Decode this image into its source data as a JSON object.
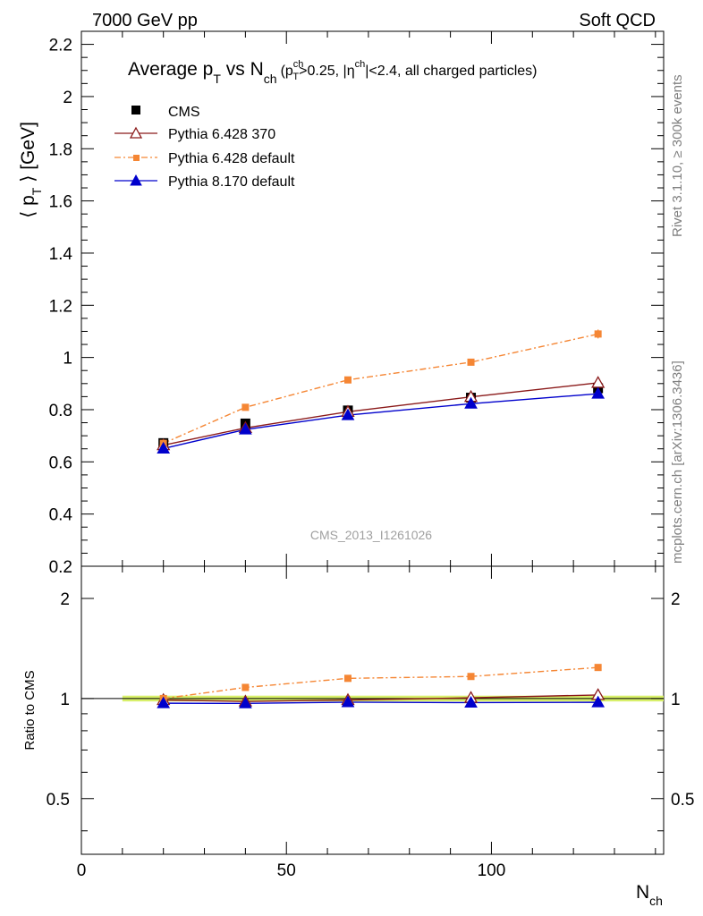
{
  "header": {
    "left": "7000 GeV pp",
    "right": "Soft QCD"
  },
  "side_labels": {
    "rivet": "Rivet 3.1.10, ≥ 300k events",
    "mcplots": "mcplots.cern.ch [arXiv:1306.3436]"
  },
  "chart_data": [
    {
      "type": "scatter",
      "panel": "main",
      "title": {
        "main": "Average p",
        "main_sub": "T",
        "vs": " vs N",
        "vs_sub": "ch",
        "cut_open": "(p",
        "cut_sup": "ch",
        "cut_sub": "T",
        "cut_mid": ">0.25, |η",
        "cut_sup2": "ch",
        "cut_end": "|<2.4, all charged particles)"
      },
      "ylabel": {
        "open": "⟨ p",
        "sub": "T",
        "close": " ⟩ [GeV]"
      },
      "watermark": "CMS_2013_I1261026",
      "xlim": [
        0,
        142
      ],
      "ylim": [
        0.2,
        2.25
      ],
      "x_ticks": [
        0,
        50,
        100
      ],
      "y_ticks": [
        "0.2",
        "0.4",
        "0.6",
        "0.8",
        "1",
        "1.2",
        "1.4",
        "1.6",
        "1.8",
        "2",
        "2.2"
      ],
      "legend_position": "top-left",
      "x": [
        20,
        40,
        65,
        95,
        126
      ],
      "series": [
        {
          "name": "CMS",
          "style": "data",
          "color": "#000000",
          "marker": "square",
          "values": [
            0.672,
            0.747,
            0.797,
            0.846,
            0.882
          ],
          "errors": [
            0.006,
            0.007,
            0.007,
            0.008,
            0.01
          ]
        },
        {
          "name": "Pythia 6.428 370",
          "style": "solid",
          "color": "#8b1a1a",
          "marker": "open-triangle",
          "values": [
            0.664,
            0.73,
            0.792,
            0.849,
            0.903
          ],
          "errors": [
            0,
            0,
            0,
            0,
            0
          ]
        },
        {
          "name": "Pythia 6.428 default",
          "style": "dashdot",
          "color": "#f58634",
          "marker": "small-square",
          "values": [
            0.671,
            0.809,
            0.914,
            0.982,
            1.09
          ],
          "errors": [
            0,
            0.005,
            0.006,
            0.008,
            0.017
          ]
        },
        {
          "name": "Pythia 8.170 default",
          "style": "solid",
          "color": "#0000cc",
          "marker": "triangle",
          "values": [
            0.651,
            0.724,
            0.779,
            0.823,
            0.861
          ],
          "errors": [
            0,
            0,
            0,
            0,
            0
          ]
        }
      ]
    },
    {
      "type": "scatter",
      "panel": "ratio",
      "ylabel": "Ratio to CMS",
      "xlabel": {
        "main": "N",
        "sub": "ch"
      },
      "xlim": [
        0,
        142
      ],
      "ylim": [
        0.34,
        2.5
      ],
      "y_scale": "log",
      "x_ticks": [
        0,
        50,
        100
      ],
      "y_ticks": [
        "0.5",
        "1",
        "2"
      ],
      "reference_band": {
        "color": "#d8f06a",
        "low": 0.98,
        "high": 1.02
      },
      "x": [
        20,
        40,
        65,
        95,
        126
      ],
      "series": [
        {
          "name": "Pythia 6.428 370",
          "style": "solid",
          "color": "#8b1a1a",
          "marker": "open-triangle",
          "values": [
            0.99,
            0.98,
            0.99,
            1.005,
            1.025
          ]
        },
        {
          "name": "Pythia 6.428 default",
          "style": "dashdot",
          "color": "#f58634",
          "marker": "small-square",
          "values": [
            1.0,
            1.08,
            1.15,
            1.165,
            1.24
          ]
        },
        {
          "name": "Pythia 8.170 default",
          "style": "solid",
          "color": "#0000cc",
          "marker": "triangle",
          "values": [
            0.968,
            0.967,
            0.975,
            0.972,
            0.974
          ]
        }
      ]
    }
  ]
}
